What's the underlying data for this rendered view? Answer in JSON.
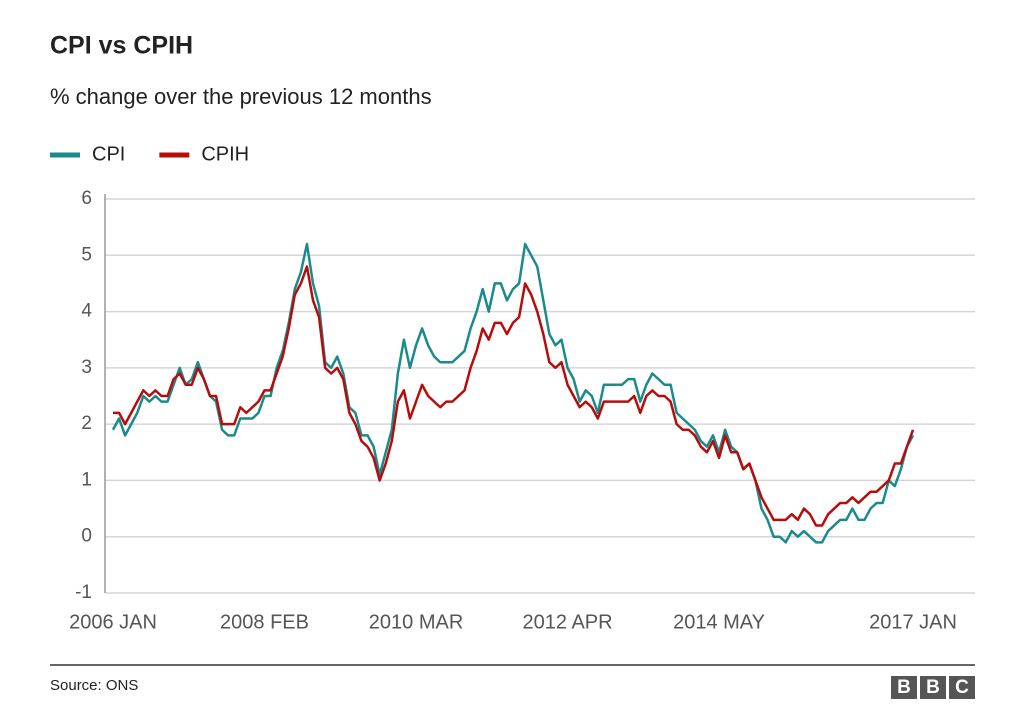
{
  "chart_data": {
    "type": "line",
    "title": "CPI vs CPIH",
    "subtitle": "% change over the previous 12 months",
    "source": "Source: ONS",
    "logo": "BBC",
    "categories": [
      "2006 JAN",
      null,
      null,
      null,
      null,
      null,
      null,
      null,
      null,
      null,
      null,
      null,
      null,
      null,
      null,
      null,
      null,
      null,
      null,
      null,
      null,
      null,
      null,
      null,
      null,
      "2008 FEB",
      null,
      null,
      null,
      null,
      null,
      null,
      null,
      null,
      null,
      null,
      null,
      null,
      null,
      null,
      null,
      null,
      null,
      null,
      null,
      null,
      null,
      null,
      null,
      null,
      "2010 MAR",
      null,
      null,
      null,
      null,
      null,
      null,
      null,
      null,
      null,
      null,
      null,
      null,
      null,
      null,
      null,
      null,
      null,
      null,
      null,
      null,
      null,
      null,
      null,
      null,
      "2012 APR",
      null,
      null,
      null,
      null,
      null,
      null,
      null,
      null,
      null,
      null,
      null,
      null,
      null,
      null,
      null,
      null,
      null,
      null,
      null,
      null,
      null,
      null,
      null,
      null,
      "2014 MAY",
      null,
      null,
      null,
      null,
      null,
      null,
      null,
      null,
      null,
      null,
      null,
      null,
      null,
      null,
      null,
      null,
      null,
      null,
      null,
      null,
      null,
      null,
      null,
      null,
      null,
      null,
      null,
      null,
      null,
      null,
      null,
      "2017 JAN"
    ],
    "series": [
      {
        "name": "CPI",
        "color": "#1b8a8c",
        "values": [
          1.9,
          2.1,
          1.8,
          2.0,
          2.2,
          2.5,
          2.4,
          2.5,
          2.4,
          2.4,
          2.7,
          3.0,
          2.7,
          2.8,
          3.1,
          2.8,
          2.5,
          2.4,
          1.9,
          1.8,
          1.8,
          2.1,
          2.1,
          2.1,
          2.2,
          2.5,
          2.5,
          3.0,
          3.3,
          3.8,
          4.4,
          4.7,
          5.2,
          4.5,
          4.1,
          3.1,
          3.0,
          3.2,
          2.9,
          2.3,
          2.2,
          1.8,
          1.8,
          1.6,
          1.1,
          1.5,
          1.9,
          2.9,
          3.5,
          3.0,
          3.4,
          3.7,
          3.4,
          3.2,
          3.1,
          3.1,
          3.1,
          3.2,
          3.3,
          3.7,
          4.0,
          4.4,
          4.0,
          4.5,
          4.5,
          4.2,
          4.4,
          4.5,
          5.2,
          5.0,
          4.8,
          4.2,
          3.6,
          3.4,
          3.5,
          3.0,
          2.8,
          2.4,
          2.6,
          2.5,
          2.2,
          2.7,
          2.7,
          2.7,
          2.7,
          2.8,
          2.8,
          2.4,
          2.7,
          2.9,
          2.8,
          2.7,
          2.7,
          2.2,
          2.1,
          2.0,
          1.9,
          1.7,
          1.6,
          1.8,
          1.5,
          1.9,
          1.6,
          1.5,
          1.2,
          1.3,
          1.0,
          0.5,
          0.3,
          0.0,
          0.0,
          -0.1,
          0.1,
          0.0,
          0.1,
          0.0,
          -0.1,
          -0.1,
          0.1,
          0.2,
          0.3,
          0.3,
          0.5,
          0.3,
          0.3,
          0.5,
          0.6,
          0.6,
          1.0,
          0.9,
          1.2,
          1.6,
          1.8
        ]
      },
      {
        "name": "CPIH",
        "color": "#b80c0c",
        "values": [
          2.2,
          2.2,
          2.0,
          2.2,
          2.4,
          2.6,
          2.5,
          2.6,
          2.5,
          2.5,
          2.8,
          2.9,
          2.7,
          2.7,
          3.0,
          2.8,
          2.5,
          2.5,
          2.0,
          2.0,
          2.0,
          2.3,
          2.2,
          2.3,
          2.4,
          2.6,
          2.6,
          2.9,
          3.2,
          3.7,
          4.3,
          4.5,
          4.8,
          4.2,
          3.9,
          3.0,
          2.9,
          3.0,
          2.8,
          2.2,
          2.0,
          1.7,
          1.6,
          1.4,
          1.0,
          1.3,
          1.7,
          2.4,
          2.6,
          2.1,
          2.4,
          2.7,
          2.5,
          2.4,
          2.3,
          2.4,
          2.4,
          2.5,
          2.6,
          3.0,
          3.3,
          3.7,
          3.5,
          3.8,
          3.8,
          3.6,
          3.8,
          3.9,
          4.5,
          4.3,
          4.0,
          3.6,
          3.1,
          3.0,
          3.1,
          2.7,
          2.5,
          2.3,
          2.4,
          2.3,
          2.1,
          2.4,
          2.4,
          2.4,
          2.4,
          2.4,
          2.5,
          2.2,
          2.5,
          2.6,
          2.5,
          2.5,
          2.4,
          2.0,
          1.9,
          1.9,
          1.8,
          1.6,
          1.5,
          1.7,
          1.4,
          1.8,
          1.5,
          1.5,
          1.2,
          1.3,
          1.0,
          0.7,
          0.5,
          0.3,
          0.3,
          0.3,
          0.4,
          0.3,
          0.5,
          0.4,
          0.2,
          0.2,
          0.4,
          0.5,
          0.6,
          0.6,
          0.7,
          0.6,
          0.7,
          0.8,
          0.8,
          0.9,
          1.0,
          1.3,
          1.3,
          1.6,
          1.9
        ]
      }
    ],
    "ylim": [
      -1,
      6
    ],
    "yticks": [
      -1,
      0,
      1,
      2,
      3,
      4,
      5,
      6
    ],
    "grid": true,
    "legend": "top-left"
  }
}
